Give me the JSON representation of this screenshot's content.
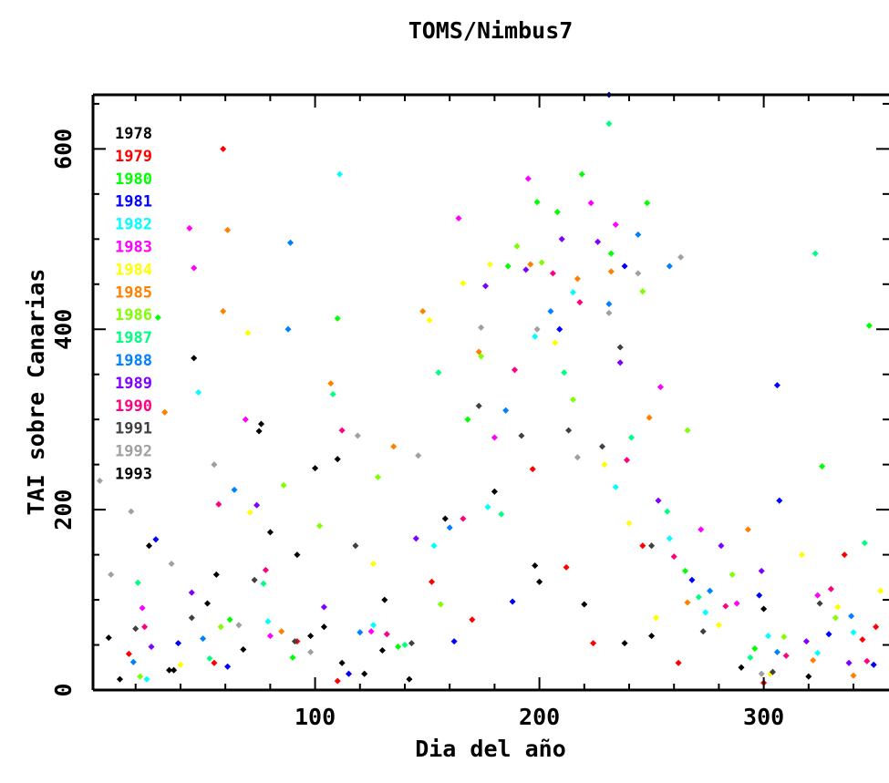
{
  "chart_data": {
    "type": "scatter",
    "title": "TOMS/Nimbus7",
    "xlabel": "Dia del año",
    "ylabel": "TAI sobre Canarias",
    "xlim": [
      1,
      366
    ],
    "ylim": [
      0,
      660
    ],
    "xticks": [
      100,
      200,
      300
    ],
    "xtick_labels": [
      "100",
      "200",
      "300"
    ],
    "yticks": [
      0,
      200,
      400,
      600
    ],
    "ytick_labels": [
      "0",
      "200",
      "400",
      "600"
    ],
    "grid": false,
    "legend_position": "top-left",
    "series": [
      {
        "name": "1978",
        "color": "#000000",
        "points": [
          [
            13,
            12
          ],
          [
            35,
            22
          ],
          [
            52,
            96
          ],
          [
            68,
            45
          ],
          [
            75,
            287
          ],
          [
            80,
            175
          ],
          [
            92,
            150
          ],
          [
            98,
            60
          ],
          [
            104,
            70
          ],
          [
            112,
            30
          ],
          [
            122,
            18
          ],
          [
            130,
            44
          ],
          [
            142,
            12
          ],
          [
            198,
            138
          ],
          [
            238,
            52
          ],
          [
            300,
            90
          ]
        ]
      },
      {
        "name": "1979",
        "color": "#ff0000",
        "points": [
          [
            17,
            40
          ],
          [
            55,
            30
          ],
          [
            59,
            600
          ],
          [
            92,
            54
          ],
          [
            110,
            10
          ],
          [
            152,
            120
          ],
          [
            170,
            78
          ],
          [
            197,
            245
          ],
          [
            212,
            136
          ],
          [
            224,
            52
          ],
          [
            246,
            160
          ],
          [
            262,
            30
          ],
          [
            300,
            8
          ],
          [
            336,
            150
          ],
          [
            344,
            56
          ],
          [
            350,
            70
          ]
        ]
      },
      {
        "name": "1980",
        "color": "#00ff00",
        "points": [
          [
            30,
            413
          ],
          [
            62,
            78
          ],
          [
            90,
            36
          ],
          [
            110,
            412
          ],
          [
            137,
            48
          ],
          [
            168,
            300
          ],
          [
            186,
            470
          ],
          [
            199,
            541
          ],
          [
            208,
            530
          ],
          [
            219,
            572
          ],
          [
            232,
            484
          ],
          [
            248,
            540
          ],
          [
            265,
            132
          ],
          [
            296,
            46
          ],
          [
            326,
            248
          ],
          [
            347,
            404
          ]
        ]
      },
      {
        "name": "1981",
        "color": "#0000ff",
        "points": [
          [
            29,
            167
          ],
          [
            39,
            52
          ],
          [
            61,
            26
          ],
          [
            115,
            18
          ],
          [
            162,
            54
          ],
          [
            188,
            98
          ],
          [
            209,
            400
          ],
          [
            231,
            660
          ],
          [
            238,
            470
          ],
          [
            268,
            122
          ],
          [
            298,
            105
          ],
          [
            306,
            338
          ],
          [
            307,
            210
          ],
          [
            329,
            62
          ],
          [
            349,
            28
          ],
          [
            360,
            42
          ]
        ]
      },
      {
        "name": "1982",
        "color": "#00ffff",
        "points": [
          [
            25,
            12
          ],
          [
            48,
            330
          ],
          [
            79,
            76
          ],
          [
            111,
            572
          ],
          [
            126,
            72
          ],
          [
            153,
            160
          ],
          [
            177,
            203
          ],
          [
            198,
            392
          ],
          [
            215,
            441
          ],
          [
            234,
            225
          ],
          [
            258,
            168
          ],
          [
            274,
            86
          ],
          [
            302,
            60
          ],
          [
            324,
            41
          ],
          [
            340,
            64
          ],
          [
            357,
            30
          ]
        ]
      },
      {
        "name": "1983",
        "color": "#ff00ff",
        "points": [
          [
            23,
            91
          ],
          [
            44,
            512
          ],
          [
            46,
            468
          ],
          [
            69,
            300
          ],
          [
            80,
            60
          ],
          [
            125,
            65
          ],
          [
            164,
            523
          ],
          [
            180,
            280
          ],
          [
            195,
            567
          ],
          [
            223,
            540
          ],
          [
            234,
            516
          ],
          [
            254,
            336
          ],
          [
            272,
            178
          ],
          [
            288,
            96
          ],
          [
            324,
            105
          ],
          [
            360,
            120
          ]
        ]
      },
      {
        "name": "1984",
        "color": "#ffff00",
        "points": [
          [
            40,
            28
          ],
          [
            70,
            396
          ],
          [
            71,
            197
          ],
          [
            126,
            140
          ],
          [
            151,
            410
          ],
          [
            166,
            451
          ],
          [
            178,
            472
          ],
          [
            207,
            385
          ],
          [
            229,
            250
          ],
          [
            240,
            185
          ],
          [
            252,
            80
          ],
          [
            280,
            72
          ],
          [
            303,
            18
          ],
          [
            317,
            150
          ],
          [
            333,
            92
          ],
          [
            352,
            110
          ]
        ]
      },
      {
        "name": "1985",
        "color": "#ff8000",
        "points": [
          [
            33,
            308
          ],
          [
            59,
            420
          ],
          [
            61,
            510
          ],
          [
            85,
            65
          ],
          [
            107,
            340
          ],
          [
            135,
            270
          ],
          [
            148,
            420
          ],
          [
            173,
            375
          ],
          [
            196,
            472
          ],
          [
            217,
            456
          ],
          [
            232,
            464
          ],
          [
            249,
            302
          ],
          [
            266,
            97
          ],
          [
            293,
            178
          ],
          [
            322,
            33
          ],
          [
            340,
            16
          ]
        ]
      },
      {
        "name": "1986",
        "color": "#80ff00",
        "points": [
          [
            22,
            15
          ],
          [
            58,
            70
          ],
          [
            86,
            227
          ],
          [
            102,
            182
          ],
          [
            128,
            236
          ],
          [
            156,
            95
          ],
          [
            174,
            370
          ],
          [
            190,
            492
          ],
          [
            201,
            474
          ],
          [
            215,
            322
          ],
          [
            246,
            442
          ],
          [
            266,
            288
          ],
          [
            286,
            128
          ],
          [
            309,
            59
          ],
          [
            332,
            80
          ],
          [
            355,
            45
          ]
        ]
      },
      {
        "name": "1987",
        "color": "#00ff80",
        "points": [
          [
            21,
            119
          ],
          [
            53,
            35
          ],
          [
            77,
            118
          ],
          [
            108,
            328
          ],
          [
            140,
            50
          ],
          [
            155,
            352
          ],
          [
            183,
            195
          ],
          [
            211,
            352
          ],
          [
            231,
            628
          ],
          [
            241,
            280
          ],
          [
            257,
            198
          ],
          [
            271,
            103
          ],
          [
            294,
            36
          ],
          [
            323,
            484
          ],
          [
            345,
            163
          ],
          [
            362,
            32
          ]
        ]
      },
      {
        "name": "1988",
        "color": "#0080ff",
        "points": [
          [
            19,
            31
          ],
          [
            50,
            57
          ],
          [
            64,
            222
          ],
          [
            88,
            400
          ],
          [
            89,
            496
          ],
          [
            120,
            64
          ],
          [
            160,
            180
          ],
          [
            185,
            310
          ],
          [
            205,
            420
          ],
          [
            231,
            428
          ],
          [
            244,
            505
          ],
          [
            258,
            470
          ],
          [
            276,
            110
          ],
          [
            306,
            42
          ],
          [
            339,
            82
          ],
          [
            364,
            100
          ]
        ]
      },
      {
        "name": "1989",
        "color": "#8000ff",
        "points": [
          [
            27,
            48
          ],
          [
            45,
            108
          ],
          [
            74,
            205
          ],
          [
            104,
            92
          ],
          [
            145,
            168
          ],
          [
            176,
            448
          ],
          [
            194,
            466
          ],
          [
            210,
            500
          ],
          [
            226,
            497
          ],
          [
            236,
            363
          ],
          [
            253,
            210
          ],
          [
            281,
            160
          ],
          [
            299,
            132
          ],
          [
            319,
            54
          ],
          [
            338,
            30
          ],
          [
            356,
            68
          ]
        ]
      },
      {
        "name": "1990",
        "color": "#ff0080",
        "points": [
          [
            24,
            70
          ],
          [
            57,
            206
          ],
          [
            78,
            133
          ],
          [
            112,
            288
          ],
          [
            132,
            62
          ],
          [
            166,
            190
          ],
          [
            189,
            355
          ],
          [
            206,
            462
          ],
          [
            218,
            430
          ],
          [
            239,
            255
          ],
          [
            260,
            148
          ],
          [
            283,
            93
          ],
          [
            310,
            38
          ],
          [
            330,
            112
          ],
          [
            346,
            32
          ],
          [
            362,
            40
          ]
        ]
      },
      {
        "name": "1991",
        "color": "#404040",
        "points": [
          [
            20,
            68
          ],
          [
            45,
            80
          ],
          [
            73,
            122
          ],
          [
            91,
            54
          ],
          [
            118,
            160
          ],
          [
            143,
            52
          ],
          [
            173,
            315
          ],
          [
            192,
            282
          ],
          [
            213,
            288
          ],
          [
            228,
            270
          ],
          [
            236,
            380
          ],
          [
            250,
            160
          ],
          [
            273,
            65
          ],
          [
            304,
            20
          ],
          [
            325,
            96
          ],
          [
            361,
            55
          ]
        ]
      },
      {
        "name": "1992",
        "color": "#a0a0a0",
        "points": [
          [
            4,
            232
          ],
          [
            9,
            128
          ],
          [
            18,
            198
          ],
          [
            36,
            140
          ],
          [
            55,
            250
          ],
          [
            66,
            72
          ],
          [
            98,
            42
          ],
          [
            119,
            282
          ],
          [
            146,
            260
          ],
          [
            174,
            402
          ],
          [
            199,
            400
          ],
          [
            217,
            258
          ],
          [
            231,
            418
          ],
          [
            244,
            462
          ],
          [
            263,
            480
          ],
          [
            299,
            18
          ]
        ]
      },
      {
        "name": "1993",
        "color": "#000000",
        "points": [
          [
            8,
            58
          ],
          [
            26,
            160
          ],
          [
            37,
            22
          ],
          [
            46,
            368
          ],
          [
            56,
            128
          ],
          [
            76,
            295
          ],
          [
            100,
            246
          ],
          [
            110,
            256
          ],
          [
            131,
            100
          ],
          [
            158,
            190
          ],
          [
            180,
            220
          ],
          [
            200,
            120
          ],
          [
            220,
            95
          ],
          [
            250,
            60
          ],
          [
            290,
            25
          ],
          [
            320,
            15
          ]
        ]
      }
    ]
  }
}
